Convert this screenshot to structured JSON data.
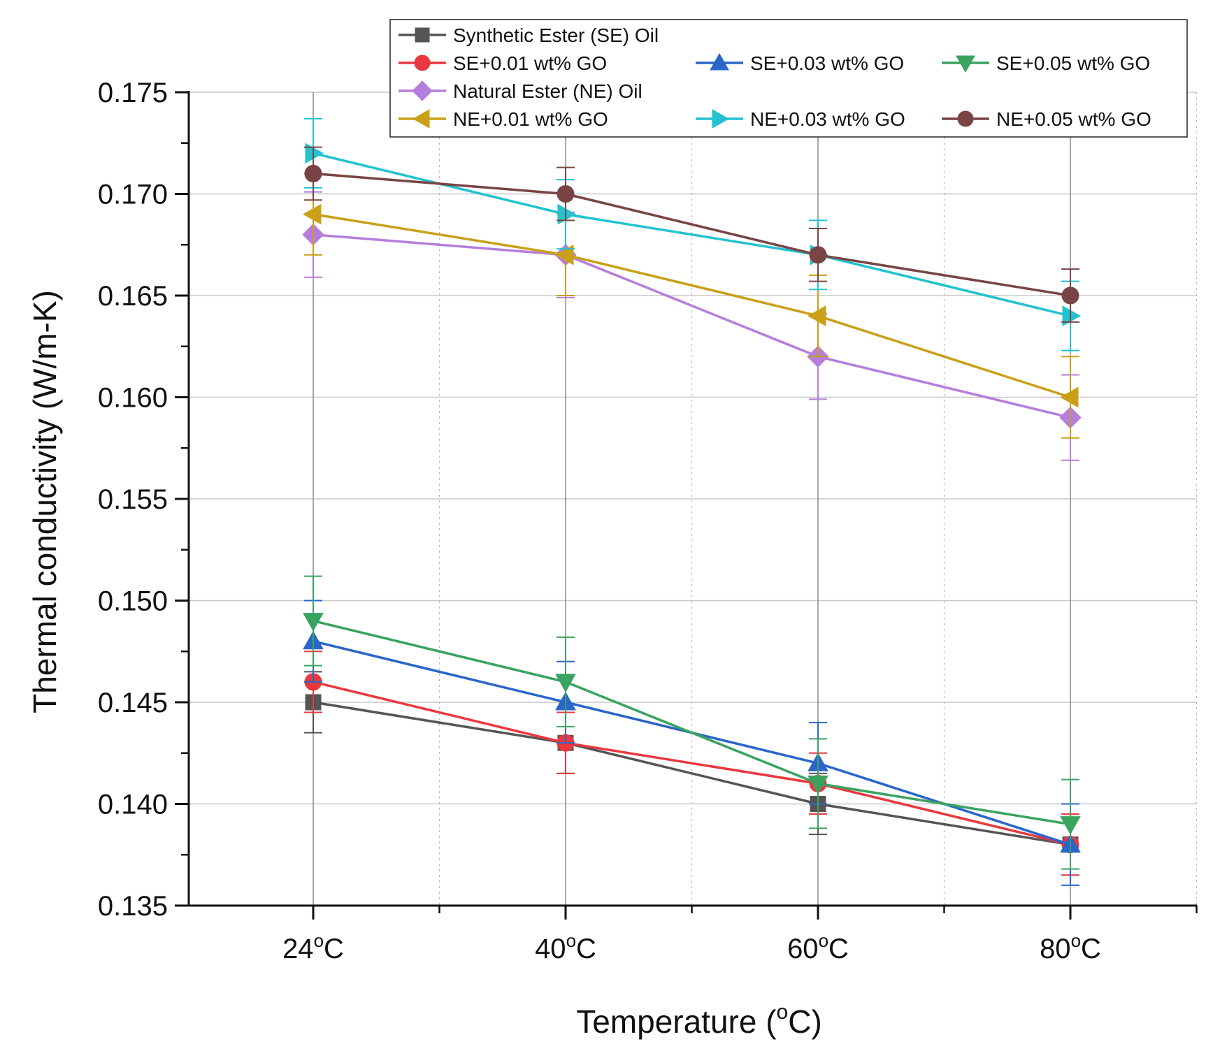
{
  "chart_data": {
    "type": "line",
    "title": "",
    "xlabel": "Temperature (°C)",
    "xlabel_main": "Temperature (",
    "xlabel_degree": "o",
    "xlabel_unit": "C)",
    "ylabel": "Thermal conductivity (W/m-K)",
    "categories": [
      "24°C",
      "40°C",
      "60°C",
      "80°C"
    ],
    "x_tick_parts": [
      {
        "number": "24",
        "degree": "o",
        "unit": "C"
      },
      {
        "number": "40",
        "degree": "o",
        "unit": "C"
      },
      {
        "number": "60",
        "degree": "o",
        "unit": "C"
      },
      {
        "number": "80",
        "degree": "o",
        "unit": "C"
      }
    ],
    "ylim": [
      0.135,
      0.175
    ],
    "y_ticks": [
      "0.135",
      "0.140",
      "0.145",
      "0.150",
      "0.155",
      "0.160",
      "0.165",
      "0.170",
      "0.175"
    ],
    "grid": true,
    "legend_position": "top",
    "series": [
      {
        "name": "Synthetic Ester (SE) Oil",
        "color": "#555555",
        "marker": "square",
        "values": [
          0.145,
          0.143,
          0.14,
          0.138
        ],
        "errors": [
          0.0015,
          0.0015,
          0.0015,
          0.0015
        ]
      },
      {
        "name": "SE+0.01 wt% GO",
        "color": "#e8393f",
        "marker": "circle",
        "values": [
          0.146,
          0.143,
          0.141,
          0.138
        ],
        "errors": [
          0.0015,
          0.0015,
          0.0015,
          0.0015
        ]
      },
      {
        "name": "SE+0.03 wt% GO",
        "color": "#2a66c9",
        "marker": "triangle-up",
        "values": [
          0.148,
          0.145,
          0.142,
          0.138
        ],
        "errors": [
          0.002,
          0.002,
          0.002,
          0.002
        ]
      },
      {
        "name": "SE+0.05 wt% GO",
        "color": "#3aa360",
        "marker": "triangle-down",
        "values": [
          0.149,
          0.146,
          0.141,
          0.139
        ],
        "errors": [
          0.0022,
          0.0022,
          0.0022,
          0.0022
        ]
      },
      {
        "name": "Natural Ester (NE) Oil",
        "color": "#b57edc",
        "marker": "diamond",
        "values": [
          0.168,
          0.167,
          0.162,
          0.159
        ],
        "errors": [
          0.0021,
          0.0021,
          0.0021,
          0.0021
        ]
      },
      {
        "name": "NE+0.01 wt% GO",
        "color": "#c9a017",
        "marker": "triangle-left",
        "values": [
          0.169,
          0.167,
          0.164,
          0.16
        ],
        "errors": [
          0.002,
          0.002,
          0.002,
          0.002
        ]
      },
      {
        "name": "NE+0.03 wt% GO",
        "color": "#22c3cf",
        "marker": "triangle-right",
        "values": [
          0.172,
          0.169,
          0.167,
          0.164
        ],
        "errors": [
          0.0017,
          0.0017,
          0.0017,
          0.0017
        ]
      },
      {
        "name": "NE+0.05 wt% GO",
        "color": "#7a4444",
        "marker": "circle",
        "values": [
          0.171,
          0.17,
          0.167,
          0.165
        ],
        "errors": [
          0.0013,
          0.0013,
          0.0013,
          0.0013
        ]
      }
    ]
  }
}
